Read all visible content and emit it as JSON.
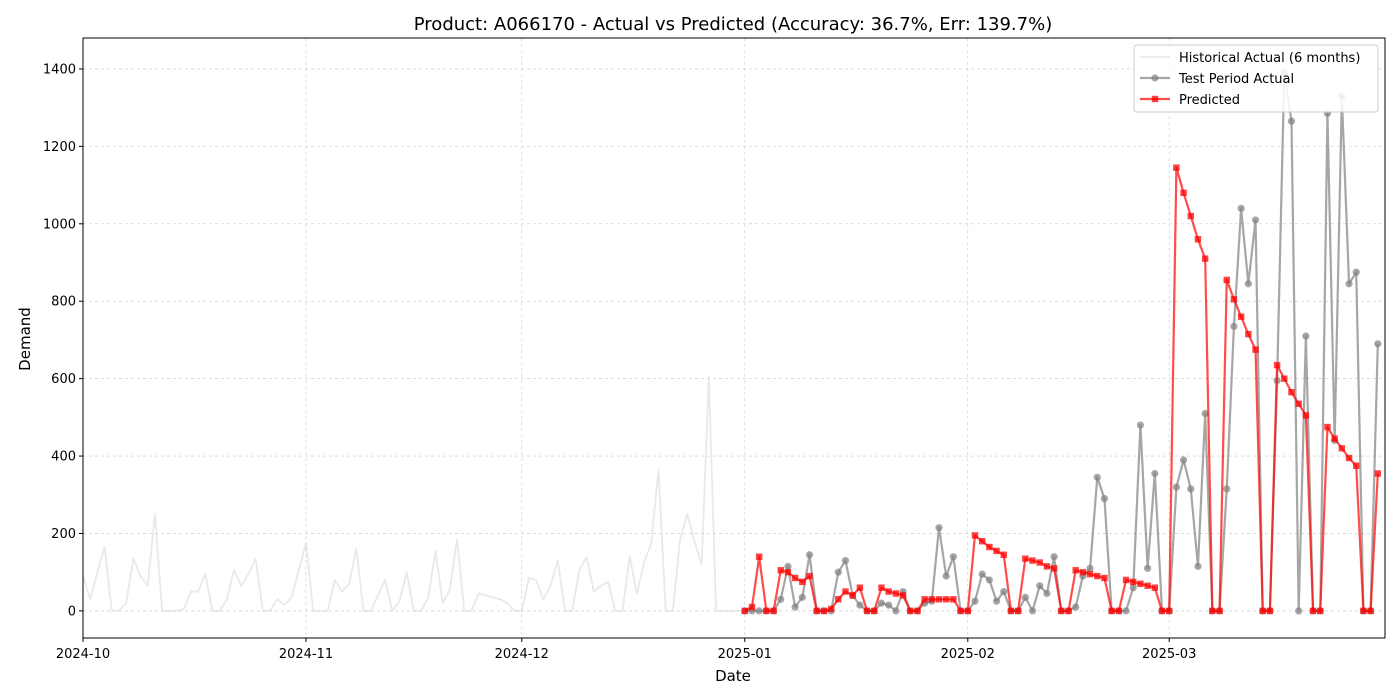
{
  "chart_data": {
    "type": "line",
    "title": "Product: A066170 - Actual vs Predicted (Accuracy: 36.7%, Err: 139.7%)",
    "xlabel": "Date",
    "ylabel": "Demand",
    "xlim": [
      "2024-10-01",
      "2025-03-31"
    ],
    "ylim": [
      -70,
      1480
    ],
    "yticks": [
      0,
      200,
      400,
      600,
      800,
      1000,
      1200,
      1400
    ],
    "xticks": [
      {
        "date": "2024-10-01",
        "label": "2024-10"
      },
      {
        "date": "2024-11-01",
        "label": "2024-11"
      },
      {
        "date": "2024-12-01",
        "label": "2024-12"
      },
      {
        "date": "2025-01-01",
        "label": "2025-01"
      },
      {
        "date": "2025-02-01",
        "label": "2025-02"
      },
      {
        "date": "2025-03-01",
        "label": "2025-03"
      }
    ],
    "grid": true,
    "legend_position": "top-right",
    "series": [
      {
        "name": "Historical Actual (6 months)",
        "color": "#d3d3d3",
        "marker": "none",
        "start_date": "2024-10-01",
        "values": [
          90,
          30,
          100,
          165,
          0,
          0,
          20,
          135,
          90,
          65,
          250,
          0,
          0,
          0,
          5,
          50,
          50,
          95,
          0,
          0,
          30,
          105,
          65,
          95,
          135,
          0,
          0,
          30,
          15,
          35,
          105,
          175,
          0,
          0,
          0,
          80,
          50,
          70,
          160,
          0,
          0,
          40,
          80,
          0,
          25,
          100,
          0,
          0,
          35,
          155,
          20,
          55,
          185,
          0,
          0,
          45,
          40,
          35,
          30,
          20,
          0,
          0,
          85,
          80,
          30,
          65,
          130,
          0,
          0,
          105,
          140,
          50,
          65,
          75,
          0,
          0,
          140,
          45,
          125,
          175,
          365,
          0,
          0,
          185,
          250,
          180,
          120,
          605,
          0,
          0,
          0,
          0,
          0
        ]
      },
      {
        "name": "Test Period Actual",
        "color": "#808080",
        "marker": "circle",
        "start_date": "2025-01-01",
        "values": [
          0,
          0,
          0,
          0,
          0,
          30,
          115,
          10,
          35,
          145,
          0,
          0,
          0,
          100,
          130,
          40,
          15,
          0,
          0,
          20,
          15,
          0,
          50,
          0,
          0,
          20,
          25,
          215,
          90,
          140,
          0,
          0,
          25,
          95,
          80,
          25,
          50,
          0,
          0,
          35,
          0,
          65,
          45,
          140,
          0,
          0,
          10,
          90,
          110,
          345,
          290,
          0,
          0,
          0,
          60,
          480,
          110,
          355,
          0,
          0,
          320,
          390,
          315,
          115,
          510,
          0,
          0,
          315,
          735,
          1040,
          845,
          1010,
          0,
          0,
          595,
          1390,
          1265,
          0,
          710,
          0,
          0,
          1285,
          440,
          1330,
          845,
          875,
          0,
          0,
          690
        ]
      },
      {
        "name": "Predicted",
        "color": "#ff0000",
        "marker": "square",
        "start_date": "2025-01-01",
        "values": [
          0,
          10,
          140,
          0,
          0,
          105,
          100,
          85,
          75,
          90,
          0,
          0,
          5,
          30,
          50,
          40,
          60,
          0,
          0,
          60,
          50,
          45,
          40,
          0,
          0,
          30,
          30,
          30,
          30,
          30,
          0,
          0,
          195,
          180,
          165,
          155,
          145,
          0,
          0,
          135,
          130,
          125,
          115,
          110,
          0,
          0,
          105,
          100,
          95,
          90,
          85,
          0,
          0,
          80,
          75,
          70,
          65,
          60,
          0,
          0,
          1145,
          1080,
          1020,
          960,
          910,
          0,
          0,
          855,
          805,
          760,
          715,
          675,
          0,
          0,
          635,
          600,
          565,
          535,
          505,
          0,
          0,
          475,
          445,
          420,
          395,
          375,
          0,
          0,
          355
        ]
      }
    ]
  }
}
